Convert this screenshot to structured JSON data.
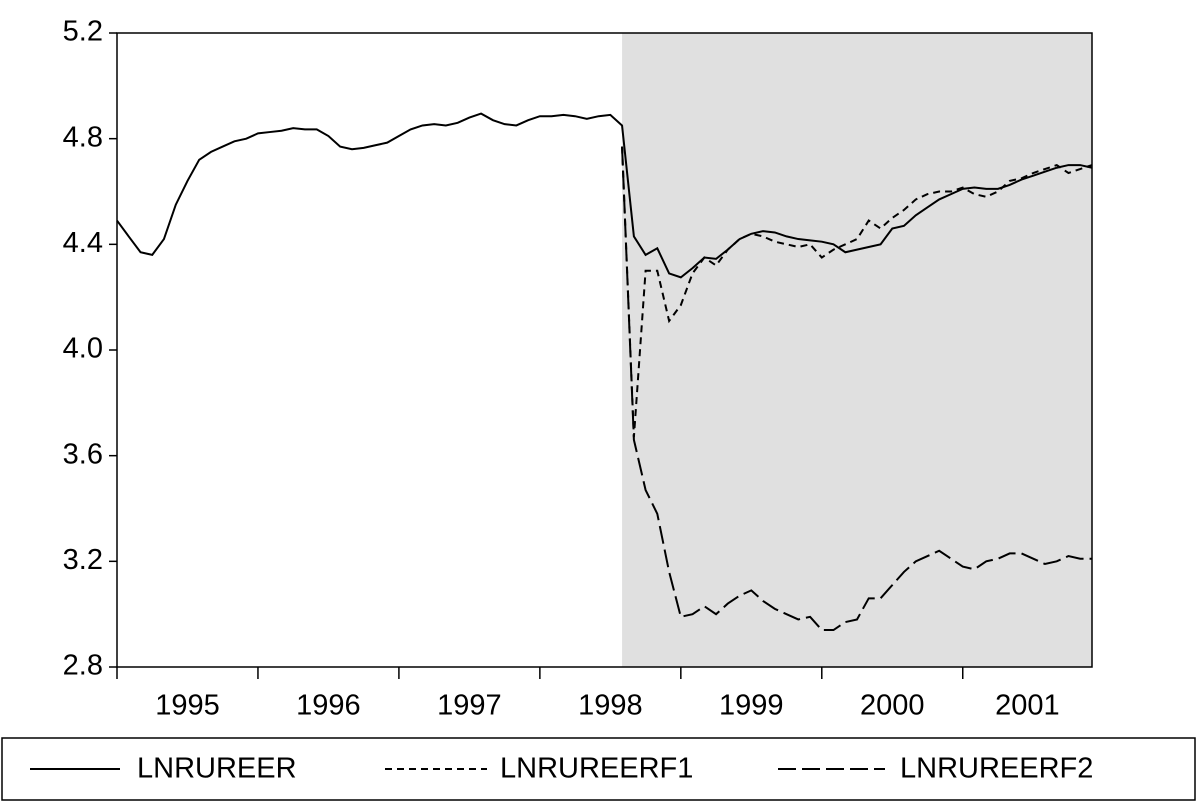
{
  "chart_data": {
    "type": "line",
    "x": [
      1995,
      1995.083,
      1995.167,
      1995.25,
      1995.333,
      1995.417,
      1995.5,
      1995.583,
      1995.667,
      1995.75,
      1995.833,
      1995.917,
      1996,
      1996.083,
      1996.167,
      1996.25,
      1996.333,
      1996.417,
      1996.5,
      1996.583,
      1996.667,
      1996.75,
      1996.833,
      1996.917,
      1997,
      1997.083,
      1997.167,
      1997.25,
      1997.333,
      1997.417,
      1997.5,
      1997.583,
      1997.667,
      1997.75,
      1997.833,
      1997.917,
      1998,
      1998.083,
      1998.167,
      1998.25,
      1998.333,
      1998.417,
      1998.5,
      1998.583,
      1998.667,
      1998.75,
      1998.833,
      1998.917,
      1999,
      1999.083,
      1999.167,
      1999.25,
      1999.333,
      1999.417,
      1999.5,
      1999.583,
      1999.667,
      1999.75,
      1999.833,
      1999.917,
      2000,
      2000.083,
      2000.167,
      2000.25,
      2000.333,
      2000.417,
      2000.5,
      2000.583,
      2000.667,
      2000.75,
      2000.833,
      2000.917,
      2001,
      2001.083,
      2001.167,
      2001.25,
      2001.333,
      2001.417,
      2001.5,
      2001.583,
      2001.667,
      2001.75,
      2001.833,
      2001.917
    ],
    "series": [
      {
        "name": "LNRUREER",
        "color": "#000000",
        "line_style": "solid",
        "values": [
          4.49,
          4.43,
          4.37,
          4.36,
          4.42,
          4.55,
          4.64,
          4.72,
          4.75,
          4.77,
          4.79,
          4.8,
          4.82,
          4.825,
          4.83,
          4.84,
          4.835,
          4.835,
          4.81,
          4.77,
          4.76,
          4.765,
          4.775,
          4.785,
          4.81,
          4.835,
          4.85,
          4.855,
          4.85,
          4.86,
          4.88,
          4.895,
          4.87,
          4.855,
          4.85,
          4.87,
          4.885,
          4.885,
          4.89,
          4.885,
          4.875,
          4.885,
          4.89,
          4.85,
          4.43,
          4.36,
          4.385,
          4.29,
          4.275,
          4.31,
          4.35,
          4.345,
          4.38,
          4.42,
          4.44,
          4.45,
          4.445,
          4.43,
          4.42,
          4.415,
          4.41,
          4.4,
          4.37,
          4.38,
          4.39,
          4.4,
          4.46,
          4.47,
          4.51,
          4.54,
          4.57,
          4.59,
          4.61,
          4.615,
          4.61,
          4.61,
          4.625,
          4.645,
          4.66,
          4.675,
          4.69,
          4.7,
          4.7,
          4.69
        ]
      },
      {
        "name": "LNRUREERF1",
        "color": "#000000",
        "line_style": "short-dash",
        "values": [
          null,
          null,
          null,
          null,
          null,
          null,
          null,
          null,
          null,
          null,
          null,
          null,
          null,
          null,
          null,
          null,
          null,
          null,
          null,
          null,
          null,
          null,
          null,
          null,
          null,
          null,
          null,
          null,
          null,
          null,
          null,
          null,
          null,
          null,
          null,
          null,
          null,
          null,
          null,
          null,
          null,
          null,
          null,
          4.77,
          3.67,
          4.3,
          4.3,
          4.11,
          4.17,
          4.29,
          4.35,
          4.32,
          4.38,
          4.42,
          4.44,
          4.43,
          4.41,
          4.4,
          4.39,
          4.4,
          4.35,
          4.38,
          4.4,
          4.42,
          4.49,
          4.46,
          4.5,
          4.53,
          4.57,
          4.59,
          4.6,
          4.6,
          4.615,
          4.59,
          4.58,
          4.6,
          4.64,
          4.65,
          4.67,
          4.685,
          4.7,
          4.67,
          4.685,
          4.7
        ]
      },
      {
        "name": "LNRUREERF2",
        "color": "#000000",
        "line_style": "long-dash",
        "values": [
          null,
          null,
          null,
          null,
          null,
          null,
          null,
          null,
          null,
          null,
          null,
          null,
          null,
          null,
          null,
          null,
          null,
          null,
          null,
          null,
          null,
          null,
          null,
          null,
          null,
          null,
          null,
          null,
          null,
          null,
          null,
          null,
          null,
          null,
          null,
          null,
          null,
          null,
          null,
          null,
          null,
          null,
          null,
          4.77,
          3.66,
          3.47,
          3.38,
          3.16,
          2.99,
          3.0,
          3.03,
          3.0,
          3.04,
          3.07,
          3.09,
          3.05,
          3.02,
          3.0,
          2.98,
          2.99,
          2.94,
          2.94,
          2.97,
          2.98,
          3.06,
          3.06,
          3.11,
          3.16,
          3.2,
          3.22,
          3.24,
          3.21,
          3.18,
          3.17,
          3.2,
          3.21,
          3.23,
          3.23,
          3.21,
          3.19,
          3.2,
          3.22,
          3.21,
          3.21
        ]
      }
    ],
    "xlim": [
      1995,
      2001.917
    ],
    "xticks": [
      1995,
      1996,
      1997,
      1998,
      1999,
      2000,
      2001
    ],
    "ylim": [
      2.8,
      5.2
    ],
    "yticks": [
      {
        "value": 2.8,
        "label": "2.8"
      },
      {
        "value": 3.2,
        "label": "3.2"
      },
      {
        "value": 3.6,
        "label": "3.6"
      },
      {
        "value": 4.0,
        "label": "4.0"
      },
      {
        "value": 4.4,
        "label": "4.4"
      },
      {
        "value": 4.8,
        "label": "4.8"
      },
      {
        "value": 5.2,
        "label": "5.2"
      }
    ],
    "shaded_range": [
      1998.583,
      2001.917
    ],
    "shade_color": "#e0e0e0",
    "grid": false,
    "legend": "bottom"
  }
}
